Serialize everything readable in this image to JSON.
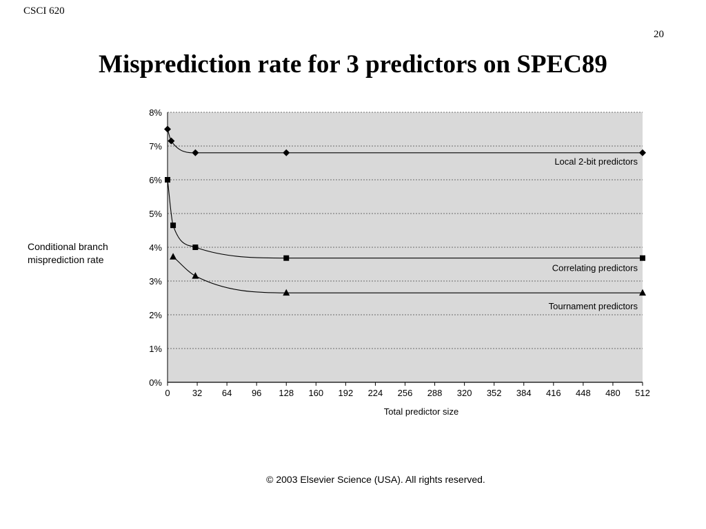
{
  "header": {
    "course": "CSCI 620",
    "slide_number": "20",
    "title": "Misprediction rate for 3 predictors on SPEC89"
  },
  "footer": {
    "copyright": "© 2003 Elsevier Science (USA). All rights reserved."
  },
  "chart_data": {
    "type": "line",
    "title": "Misprediction rate for 3 predictors on SPEC89",
    "xlabel": "Total predictor size",
    "ylabel_lines": [
      "Conditional branch",
      "misprediction rate"
    ],
    "xlim": [
      0,
      512
    ],
    "ylim": [
      0,
      8
    ],
    "xticks": [
      0,
      32,
      64,
      96,
      128,
      160,
      192,
      224,
      256,
      288,
      320,
      352,
      384,
      416,
      448,
      480,
      512
    ],
    "yticks": [
      0,
      1,
      2,
      3,
      4,
      5,
      6,
      7,
      8
    ],
    "ytick_labels": [
      "0%",
      "1%",
      "2%",
      "3%",
      "4%",
      "5%",
      "6%",
      "7%",
      "8%"
    ],
    "grid": true,
    "plot_background": "#d9d9d9",
    "series": [
      {
        "name": "Local 2-bit predictors",
        "marker": "diamond",
        "points": [
          [
            0,
            7.5
          ],
          [
            4,
            7.15
          ],
          [
            30,
            6.8
          ],
          [
            128,
            6.8
          ],
          [
            512,
            6.8
          ]
        ]
      },
      {
        "name": "Correlating predictors",
        "marker": "square",
        "points": [
          [
            0,
            6.0
          ],
          [
            6,
            4.65
          ],
          [
            30,
            4.0
          ],
          [
            128,
            3.68
          ],
          [
            512,
            3.68
          ]
        ]
      },
      {
        "name": "Tournament predictors",
        "marker": "triangle",
        "points": [
          [
            6,
            3.72
          ],
          [
            30,
            3.15
          ],
          [
            128,
            2.65
          ],
          [
            512,
            2.65
          ]
        ]
      }
    ]
  }
}
